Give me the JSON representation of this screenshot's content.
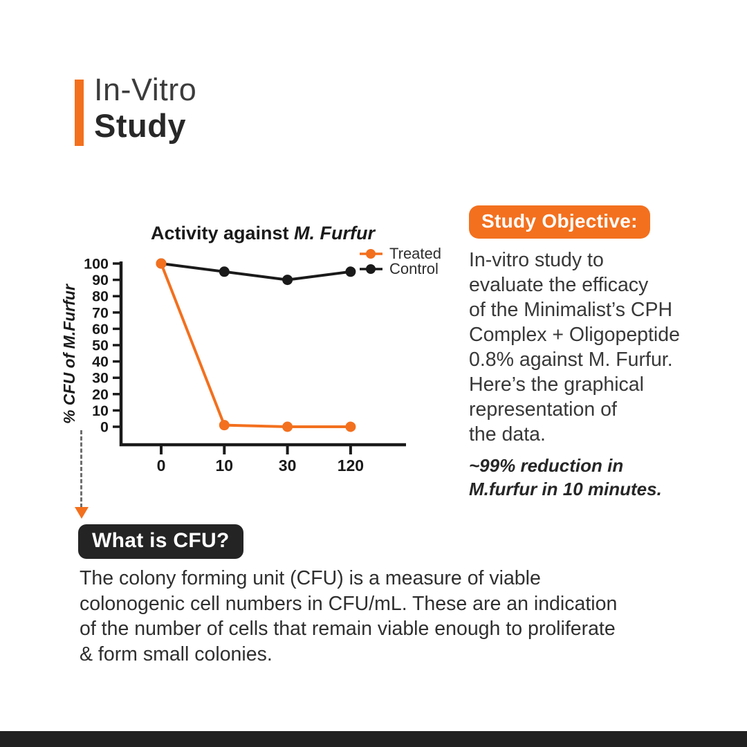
{
  "header": {
    "title_line1": "In-Vitro",
    "title_line2": "Study"
  },
  "study_objective": {
    "badge": "Study Objective:",
    "body": "In-vitro study to\nevaluate the efficacy\nof the Minimalist’s CPH\nComplex + Oligopeptide\n0.8% against M. Furfur.\nHere’s the graphical\nrepresentation of\nthe data.",
    "note": "~99% reduction in\nM.furfur in 10 minutes."
  },
  "cfu": {
    "badge": "What is CFU?",
    "body": "The colony forming unit (CFU) is a measure of viable\ncolonogenic cell numbers in CFU/mL. These are an indication\nof the number of cells that remain viable enough to proliferate\n& form small colonies."
  },
  "colors": {
    "accent_orange": "#F3701E",
    "chart_black": "#1a1a1a",
    "footer": "#212121"
  },
  "chart_data": {
    "type": "line",
    "title_prefix": "Activity against ",
    "title_italic": "M. Furfur",
    "xlabel": "",
    "ylabel": "% CFU of M.Furfur",
    "categories": [
      "0",
      "10",
      "30",
      "120"
    ],
    "series": [
      {
        "name": "Treated",
        "color": "#F3701E",
        "values": [
          100,
          1,
          0,
          0
        ]
      },
      {
        "name": "Control",
        "color": "#1a1a1a",
        "values": [
          100,
          95,
          90,
          95
        ]
      }
    ],
    "ylim": [
      0,
      100
    ],
    "ytick_step": 10,
    "grid": false,
    "legend_position": "top-right"
  }
}
